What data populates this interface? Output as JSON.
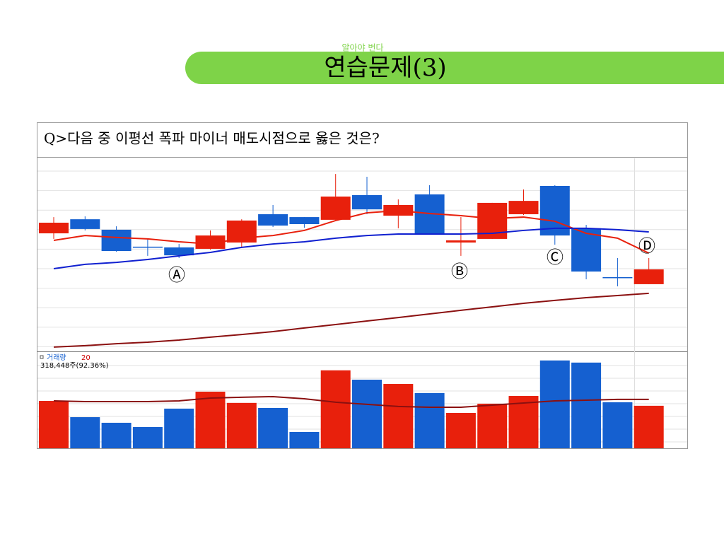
{
  "header": {
    "tagline": "알아야 번다",
    "title": "연습문제(3)"
  },
  "question": "Q>다음 중 이평선 폭파 마이너 매도시점으로 옳은 것은?",
  "annotations": [
    "Ⓐ",
    "Ⓑ",
    "Ⓒ",
    "Ⓓ"
  ],
  "chart_data": {
    "type": "candlestick",
    "up_color": "#e8200c",
    "down_color": "#1560d0",
    "ylim": [
      0,
      100
    ],
    "open": [
      64.7,
      72.5,
      66.7,
      57.3,
      56.9,
      56.1,
      59.6,
      75.3,
      73.7,
      72.2,
      85.9,
      74.5,
      86.3,
      59.6,
      61.6,
      75.3,
      91.0,
      67.5,
      40.4,
      36.5
    ],
    "high": [
      73.7,
      74.1,
      68.6,
      61.6,
      58.8,
      66.3,
      72.5,
      80.4,
      73.7,
      97.6,
      96.1,
      83.5,
      91.4,
      73.7,
      81.6,
      89.0,
      91.4,
      69.4,
      51.0,
      51.0
    ],
    "low": [
      61.6,
      66.3,
      54.5,
      52.2,
      51.0,
      55.7,
      56.9,
      68.2,
      67.8,
      72.2,
      75.3,
      67.5,
      64.3,
      52.2,
      61.6,
      74.9,
      58.4,
      39.2,
      35.3,
      36.5
    ],
    "close": [
      70.6,
      67.1,
      54.9,
      56.9,
      52.5,
      63.5,
      71.8,
      69.0,
      69.8,
      85.1,
      78.0,
      80.4,
      64.7,
      60.8,
      81.6,
      82.7,
      63.5,
      43.5,
      40.0,
      44.7
    ],
    "moving_averages": [
      {
        "color": "#e8200c",
        "values": [
          60.8,
          63.5,
          62.4,
          61.6,
          60.0,
          58.8,
          62.0,
          63.5,
          66.3,
          71.8,
          76.1,
          77.3,
          75.7,
          74.5,
          72.9,
          73.7,
          71.4,
          64.7,
          62.0,
          53.7
        ]
      },
      {
        "color": "#1020d0",
        "values": [
          45.1,
          47.5,
          48.6,
          50.2,
          52.2,
          54.1,
          56.9,
          58.8,
          60.0,
          62.0,
          63.5,
          64.3,
          64.3,
          64.3,
          64.7,
          66.3,
          67.5,
          67.5,
          66.7,
          65.5
        ]
      },
      {
        "color": "#8b1010",
        "values": [
          1.6,
          2.4,
          3.5,
          4.3,
          5.5,
          7.1,
          8.6,
          10.2,
          12.2,
          14.1,
          16.1,
          18.0,
          20.0,
          22.0,
          23.9,
          25.9,
          27.5,
          29.0,
          30.2,
          31.4
        ]
      }
    ],
    "volume": {
      "name": "거래량",
      "ma_name": "20",
      "info": "318,448주(92.36%)",
      "ylim": [
        0,
        710000
      ],
      "values": [
        355000,
        233000,
        191000,
        159000,
        297000,
        424000,
        340000,
        302000,
        122000,
        584000,
        514000,
        482000,
        414000,
        265000,
        334000,
        392000,
        658000,
        642000,
        345000,
        318448
      ],
      "ma_color": "#8b1010",
      "ma": [
        355000,
        350000,
        350000,
        350000,
        355000,
        376000,
        382000,
        387000,
        371000,
        345000,
        329000,
        313000,
        307000,
        307000,
        323000,
        339000,
        355000,
        360000,
        366000,
        366000
      ]
    }
  }
}
